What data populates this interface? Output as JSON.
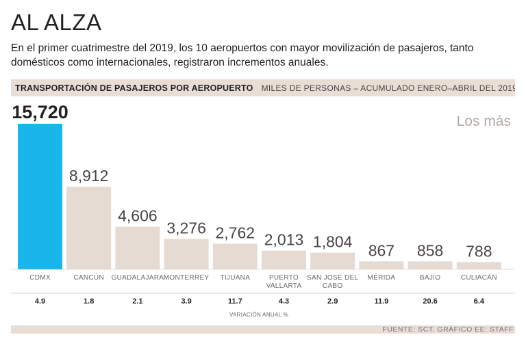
{
  "header": {
    "title": "AL ALZA",
    "subtitle": "En el primer cuatrimestre del 2019, los 10 aeropuertos con mayor movilización de pasajeros, tanto domésticos como internacionales, registraron incrementos anuales."
  },
  "band": {
    "bold": "TRANSPORTACIÓN DE PASAJEROS POR AEROPUERTO",
    "light": "MILES DE PERSONAS – ACUMULADO ENERO–ABRIL DEL 2019"
  },
  "annotation": "Los más",
  "source": "FUENTE: SCT. GRÁFICO EE: STAFF",
  "colors": {
    "highlight": "#1ab5ea",
    "bar": "#e6dbd2",
    "band": "#e8ded6"
  },
  "chart_data": {
    "type": "bar",
    "title": "TRANSPORTACIÓN DE PASAJEROS POR AEROPUERTO",
    "ylabel": "Miles de personas",
    "categories": [
      [
        "CDMX"
      ],
      [
        "CANCÚN"
      ],
      [
        "GUADALAJARA"
      ],
      [
        "MONTERREY"
      ],
      [
        "TIJUANA"
      ],
      [
        "PUERTO",
        "VALLARTA"
      ],
      [
        "SAN JOSÉ DEL",
        "CABO"
      ],
      [
        "MÉRIDA"
      ],
      [
        "BAJÍO"
      ],
      [
        "CULIACÁN"
      ]
    ],
    "values": [
      15720,
      8912,
      4606,
      3276,
      2762,
      2013,
      1804,
      867,
      858,
      788
    ],
    "value_labels": [
      "15,720",
      "8,912",
      "4,606",
      "3,276",
      "2,762",
      "2,013",
      "1,804",
      "867",
      "858",
      "788"
    ],
    "variation": [
      "4.9",
      "1.8",
      "2.1",
      "3.9",
      "11.7",
      "4.3",
      "2.9",
      "11.9",
      "20.6",
      "6.4"
    ],
    "variation_label": "VARIACIÓN ANUAL %",
    "highlight_index": 0,
    "ylim": [
      0,
      15720
    ]
  }
}
